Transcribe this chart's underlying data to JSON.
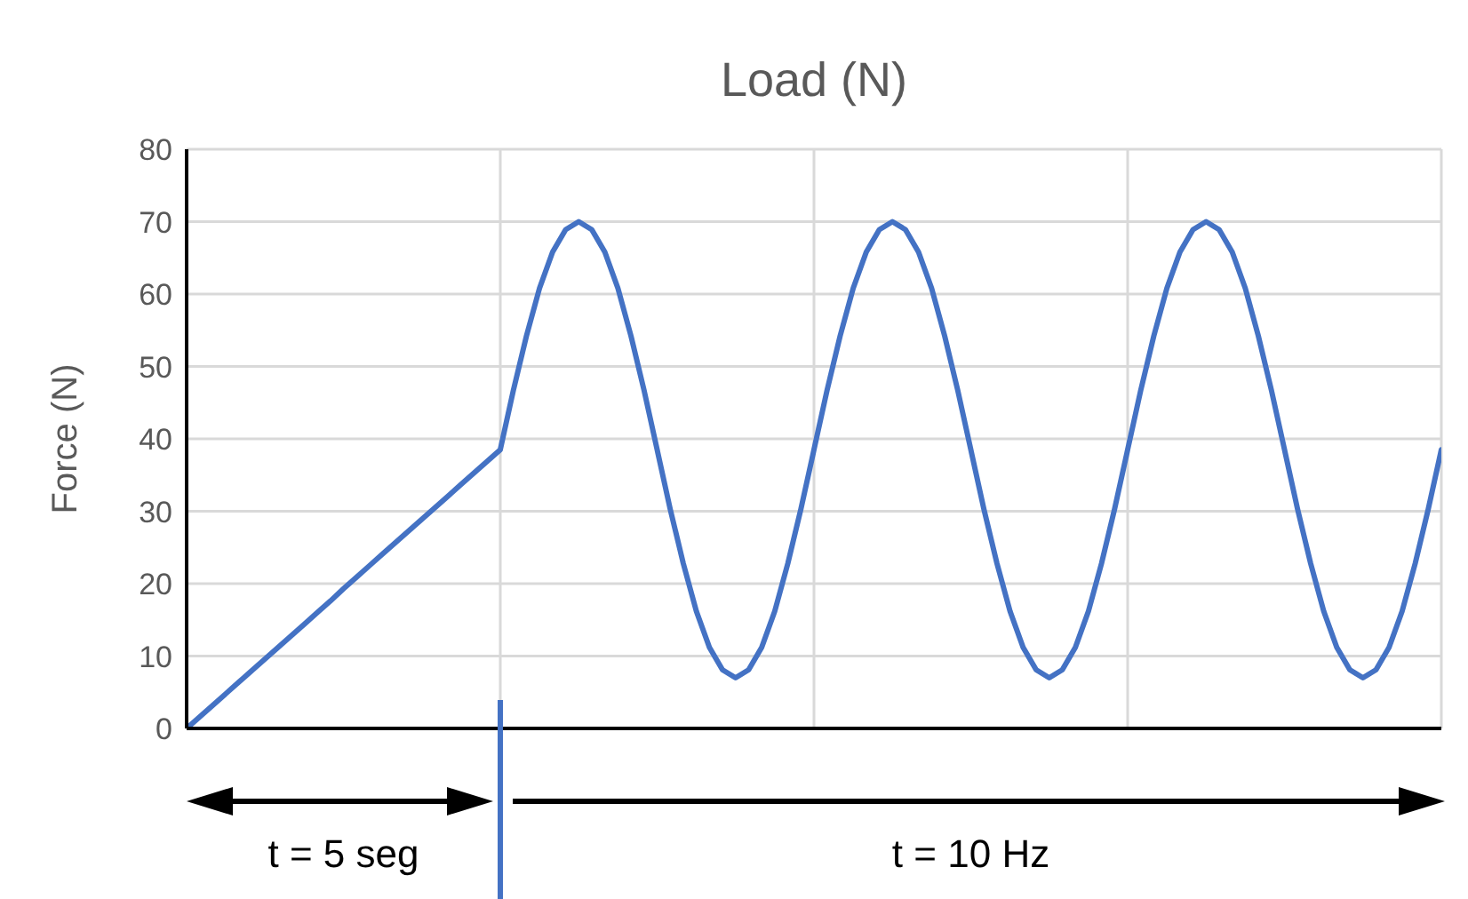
{
  "chart_data": {
    "type": "line",
    "title": "Load (N)",
    "ylabel": "Force (N)",
    "categories": [
      null,
      null,
      null,
      null,
      null,
      null,
      null,
      null,
      null,
      null,
      null,
      null,
      null,
      null,
      null,
      null,
      null,
      null,
      null,
      null,
      null,
      null,
      null,
      null,
      null,
      null,
      null,
      null,
      null,
      null,
      null,
      null,
      null,
      null,
      null,
      null,
      null,
      null,
      null,
      null,
      null,
      null,
      null,
      null,
      null,
      null,
      null,
      null,
      null,
      null,
      null,
      null,
      null,
      null,
      null,
      null,
      null,
      null,
      null,
      null,
      null,
      null,
      null,
      null,
      null,
      null,
      null,
      null,
      null,
      null,
      null,
      null,
      null,
      null,
      null,
      null,
      null,
      null,
      null,
      null,
      null,
      null,
      null,
      null,
      null,
      null,
      null,
      null,
      null,
      null,
      null,
      null,
      null,
      null,
      null,
      null,
      null
    ],
    "series": [
      {
        "color": "#4472c4",
        "values": [
          0,
          1.6,
          3.2,
          4.8,
          6.4,
          8,
          9.6,
          11.2,
          12.8,
          14.4,
          16,
          17.6,
          19.3,
          20.9,
          22.5,
          24.1,
          25.7,
          27.3,
          28.9,
          30.5,
          32.1,
          33.7,
          35.3,
          36.9,
          38.5,
          46.7,
          54.2,
          60.8,
          65.8,
          68.9,
          70,
          68.9,
          65.8,
          60.8,
          54.2,
          46.7,
          38.5,
          30.3,
          22.8,
          16.2,
          11.2,
          8.1,
          7,
          8.1,
          11.2,
          16.2,
          22.8,
          30.3,
          38.5,
          46.7,
          54.2,
          60.8,
          65.8,
          68.9,
          70,
          68.9,
          65.8,
          60.8,
          54.2,
          46.7,
          38.5,
          30.3,
          22.8,
          16.2,
          11.2,
          8.1,
          7,
          8.1,
          11.2,
          16.2,
          22.8,
          30.3,
          38.5,
          46.7,
          54.2,
          60.8,
          65.8,
          68.9,
          70,
          68.9,
          65.8,
          60.8,
          54.2,
          46.7,
          38.5,
          30.3,
          22.8,
          16.2,
          11.2,
          8.1,
          7,
          8.1,
          11.2,
          16.2,
          22.8,
          30.3,
          38.5
        ]
      }
    ],
    "ylim": [
      0,
      80
    ],
    "yticks": [
      0,
      10,
      20,
      30,
      40,
      50,
      60,
      70,
      80
    ],
    "tick_labels": "y",
    "grid": true,
    "marker": "none",
    "line_style": "solid",
    "annotations": [
      "t = 5 seg",
      "t = 10 Hz"
    ]
  }
}
